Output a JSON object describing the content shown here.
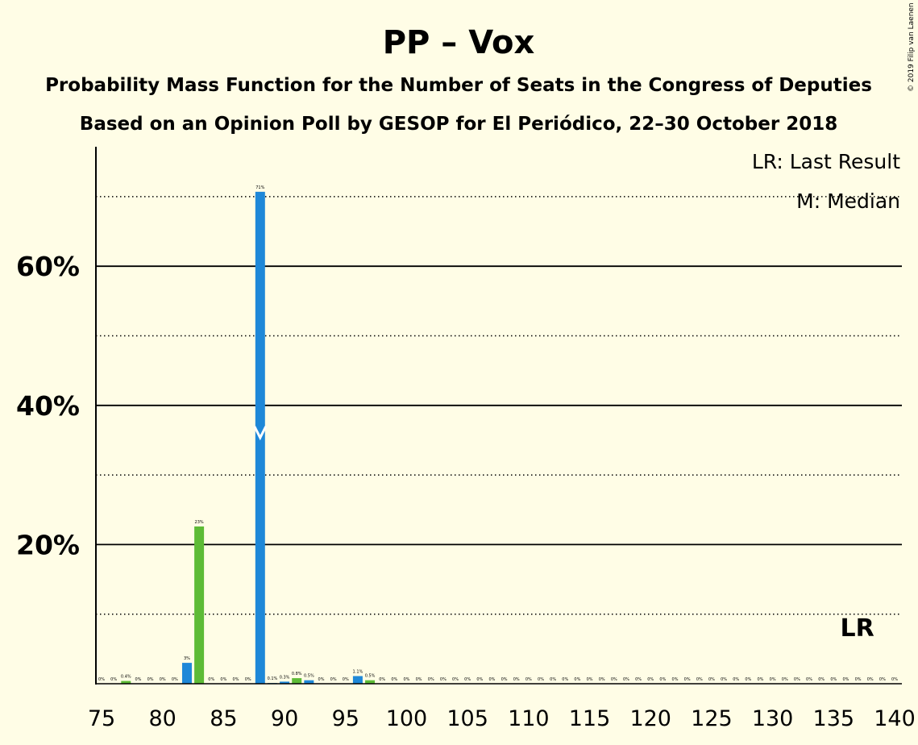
{
  "chart_data": {
    "type": "bar",
    "title": "PP – Vox",
    "subtitle1": "Probability Mass Function for the Number of Seats in the Congress of Deputies",
    "subtitle2": "Based on an Opinion Poll by GESOP for El Periódico, 22–30 October 2018",
    "copyright": "© 2019 Filip van Laenen",
    "legend": [
      "LR: Last Result",
      "M: Median"
    ],
    "lr_label": "LR",
    "last_result": 137,
    "median": 88,
    "ylim": [
      0,
      77
    ],
    "yticks": [
      {
        "value": 20,
        "label": "20%"
      },
      {
        "value": 40,
        "label": "40%"
      },
      {
        "value": 60,
        "label": "60%"
      }
    ],
    "xticks": [
      75,
      80,
      85,
      90,
      95,
      100,
      105,
      110,
      115,
      120,
      125,
      130,
      135,
      140
    ],
    "colors": {
      "blue": "#1E88D8",
      "green": "#5DBB36",
      "background": "#FFFDE6"
    },
    "bars": [
      {
        "seats": 75,
        "value": 0,
        "label": "0%",
        "color": "blue"
      },
      {
        "seats": 76,
        "value": 0,
        "label": "0%",
        "color": "blue"
      },
      {
        "seats": 77,
        "value": 0.4,
        "label": "0.4%",
        "color": "green"
      },
      {
        "seats": 78,
        "value": 0,
        "label": "0%",
        "color": "blue"
      },
      {
        "seats": 79,
        "value": 0,
        "label": "0%",
        "color": "blue"
      },
      {
        "seats": 80,
        "value": 0,
        "label": "0%",
        "color": "blue"
      },
      {
        "seats": 81,
        "value": 0,
        "label": "0%",
        "color": "blue"
      },
      {
        "seats": 82,
        "value": 3,
        "label": "3%",
        "color": "blue"
      },
      {
        "seats": 83,
        "value": 22.6,
        "label": "23%",
        "color": "green"
      },
      {
        "seats": 84,
        "value": 0,
        "label": "0%",
        "color": "blue"
      },
      {
        "seats": 85,
        "value": 0,
        "label": "0%",
        "color": "blue"
      },
      {
        "seats": 86,
        "value": 0,
        "label": "0%",
        "color": "blue"
      },
      {
        "seats": 87,
        "value": 0,
        "label": "0%",
        "color": "blue"
      },
      {
        "seats": 88,
        "value": 70.7,
        "label": "71%",
        "color": "blue"
      },
      {
        "seats": 89,
        "value": 0.1,
        "label": "0.1%",
        "color": "blue"
      },
      {
        "seats": 90,
        "value": 0.3,
        "label": "0.3%",
        "color": "blue"
      },
      {
        "seats": 91,
        "value": 0.8,
        "label": "0.8%",
        "color": "green"
      },
      {
        "seats": 92,
        "value": 0.5,
        "label": "0.5%",
        "color": "blue"
      },
      {
        "seats": 93,
        "value": 0,
        "label": "0%",
        "color": "blue"
      },
      {
        "seats": 94,
        "value": 0,
        "label": "0%",
        "color": "blue"
      },
      {
        "seats": 95,
        "value": 0,
        "label": "0%",
        "color": "blue"
      },
      {
        "seats": 96,
        "value": 1.1,
        "label": "1.1%",
        "color": "blue"
      },
      {
        "seats": 97,
        "value": 0.5,
        "label": "0.5%",
        "color": "green"
      },
      {
        "seats": 98,
        "value": 0,
        "label": "0%",
        "color": "blue"
      },
      {
        "seats": 99,
        "value": 0,
        "label": "0%",
        "color": "blue"
      },
      {
        "seats": 100,
        "value": 0,
        "label": "0%",
        "color": "blue"
      },
      {
        "seats": 101,
        "value": 0,
        "label": "0%",
        "color": "blue"
      },
      {
        "seats": 102,
        "value": 0,
        "label": "0%",
        "color": "blue"
      },
      {
        "seats": 103,
        "value": 0,
        "label": "0%",
        "color": "blue"
      },
      {
        "seats": 104,
        "value": 0,
        "label": "0%",
        "color": "blue"
      },
      {
        "seats": 105,
        "value": 0,
        "label": "0%",
        "color": "blue"
      },
      {
        "seats": 106,
        "value": 0,
        "label": "0%",
        "color": "blue"
      },
      {
        "seats": 107,
        "value": 0,
        "label": "0%",
        "color": "blue"
      },
      {
        "seats": 108,
        "value": 0,
        "label": "0%",
        "color": "blue"
      },
      {
        "seats": 109,
        "value": 0,
        "label": "0%",
        "color": "blue"
      },
      {
        "seats": 110,
        "value": 0,
        "label": "0%",
        "color": "blue"
      },
      {
        "seats": 111,
        "value": 0,
        "label": "0%",
        "color": "blue"
      },
      {
        "seats": 112,
        "value": 0,
        "label": "0%",
        "color": "blue"
      },
      {
        "seats": 113,
        "value": 0,
        "label": "0%",
        "color": "blue"
      },
      {
        "seats": 114,
        "value": 0,
        "label": "0%",
        "color": "blue"
      },
      {
        "seats": 115,
        "value": 0,
        "label": "0%",
        "color": "blue"
      },
      {
        "seats": 116,
        "value": 0,
        "label": "0%",
        "color": "blue"
      },
      {
        "seats": 117,
        "value": 0,
        "label": "0%",
        "color": "blue"
      },
      {
        "seats": 118,
        "value": 0,
        "label": "0%",
        "color": "blue"
      },
      {
        "seats": 119,
        "value": 0,
        "label": "0%",
        "color": "blue"
      },
      {
        "seats": 120,
        "value": 0,
        "label": "0%",
        "color": "blue"
      },
      {
        "seats": 121,
        "value": 0,
        "label": "0%",
        "color": "blue"
      },
      {
        "seats": 122,
        "value": 0,
        "label": "0%",
        "color": "blue"
      },
      {
        "seats": 123,
        "value": 0,
        "label": "0%",
        "color": "blue"
      },
      {
        "seats": 124,
        "value": 0,
        "label": "0%",
        "color": "blue"
      },
      {
        "seats": 125,
        "value": 0,
        "label": "0%",
        "color": "blue"
      },
      {
        "seats": 126,
        "value": 0,
        "label": "0%",
        "color": "blue"
      },
      {
        "seats": 127,
        "value": 0,
        "label": "0%",
        "color": "blue"
      },
      {
        "seats": 128,
        "value": 0,
        "label": "0%",
        "color": "blue"
      },
      {
        "seats": 129,
        "value": 0,
        "label": "0%",
        "color": "blue"
      },
      {
        "seats": 130,
        "value": 0,
        "label": "0%",
        "color": "blue"
      },
      {
        "seats": 131,
        "value": 0,
        "label": "0%",
        "color": "blue"
      },
      {
        "seats": 132,
        "value": 0,
        "label": "0%",
        "color": "blue"
      },
      {
        "seats": 133,
        "value": 0,
        "label": "0%",
        "color": "blue"
      },
      {
        "seats": 134,
        "value": 0,
        "label": "0%",
        "color": "blue"
      },
      {
        "seats": 135,
        "value": 0,
        "label": "0%",
        "color": "blue"
      },
      {
        "seats": 136,
        "value": 0,
        "label": "0%",
        "color": "blue"
      },
      {
        "seats": 137,
        "value": 0,
        "label": "0%",
        "color": "blue"
      },
      {
        "seats": 138,
        "value": 0,
        "label": "0%",
        "color": "blue"
      },
      {
        "seats": 139,
        "value": 0,
        "label": "0%",
        "color": "blue"
      },
      {
        "seats": 140,
        "value": 0,
        "label": "0%",
        "color": "blue"
      }
    ]
  }
}
